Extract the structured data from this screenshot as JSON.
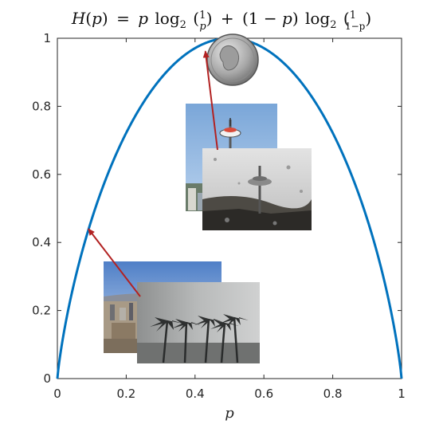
{
  "chart_data": {
    "type": "line",
    "title": "H(p) = p log2(1/p) + (1 − p) log2(1/(1−p))",
    "title_parts": {
      "H": "H",
      "lp": "(",
      "p": "p",
      "rp": ")",
      "eq": "=",
      "log": "log",
      "base": "2",
      "one": "1",
      "plus": "+",
      "minus": "1 − ",
      "omp": "1−p"
    },
    "xlabel": "p",
    "ylabel": "",
    "xlim": [
      0,
      1
    ],
    "ylim": [
      0,
      1
    ],
    "xticks": [
      "0",
      "0.2",
      "0.4",
      "0.6",
      "0.8",
      "1"
    ],
    "yticks": [
      "0",
      "0.2",
      "0.4",
      "0.6",
      "0.8",
      "1"
    ],
    "xtick_values": [
      0,
      0.2,
      0.4,
      0.6,
      0.8,
      1
    ],
    "ytick_values": [
      0,
      0.2,
      0.4,
      0.6,
      0.8,
      1
    ],
    "grid": false,
    "series": [
      {
        "function": "binary-entropy",
        "color": "#0072BD",
        "x": [
          0,
          0.02,
          0.05,
          0.1,
          0.15,
          0.2,
          0.25,
          0.3,
          0.35,
          0.4,
          0.45,
          0.5,
          0.55,
          0.6,
          0.65,
          0.7,
          0.75,
          0.8,
          0.85,
          0.9,
          0.95,
          0.98,
          1
        ],
        "y": [
          0,
          0.141,
          0.286,
          0.469,
          0.61,
          0.722,
          0.811,
          0.881,
          0.934,
          0.971,
          0.993,
          1,
          0.993,
          0.971,
          0.934,
          0.881,
          0.811,
          0.722,
          0.61,
          0.469,
          0.286,
          0.141,
          0
        ]
      }
    ],
    "annotations": [
      {
        "kind": "arrow",
        "color": "#B22222",
        "from_label": "sunny seattle photo",
        "to": {
          "x": 0.43,
          "y": 0.99
        }
      },
      {
        "kind": "arrow",
        "color": "#B22222",
        "from_label": "stormy palm trees photo",
        "to": {
          "x": 0.09,
          "y": 0.44
        }
      }
    ],
    "images": [
      {
        "name": "coin-quarter",
        "description": "US quarter coin at the peak"
      },
      {
        "name": "sunny-space-needle",
        "description": "Space Needle under blue sky"
      },
      {
        "name": "rainy-space-needle",
        "description": "Space Needle through rainy window"
      },
      {
        "name": "sunny-city",
        "description": "City skyline under blue sky"
      },
      {
        "name": "stormy-palms",
        "description": "Palm trees in a storm"
      }
    ],
    "colors": {
      "curve": "#0072BD",
      "arrow": "#B22222",
      "axes": "#262626"
    }
  }
}
